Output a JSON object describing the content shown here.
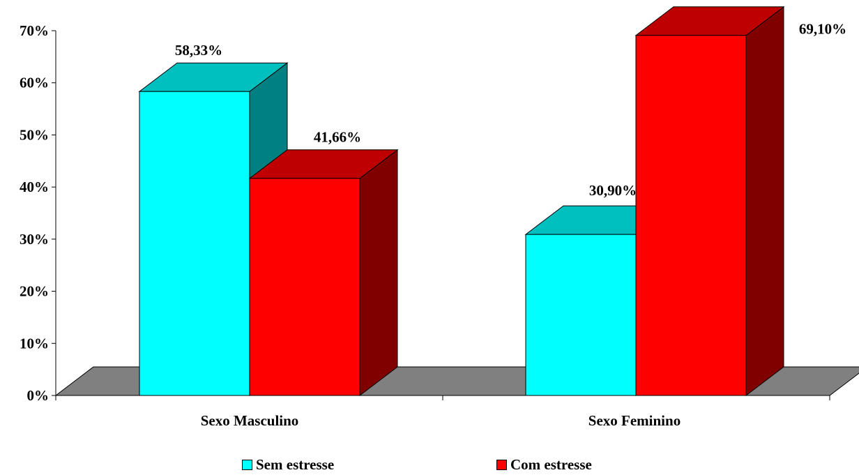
{
  "chart_data": {
    "type": "bar",
    "style": "3d-clustered-column",
    "categories": [
      "Sexo Masculino",
      "Sexo Feminino"
    ],
    "series": [
      {
        "name": "Sem estresse",
        "values": [
          58.33,
          30.9
        ],
        "labels": [
          "58,33%",
          "30,90%"
        ],
        "color": "#00FFFF"
      },
      {
        "name": "Com estresse",
        "values": [
          41.66,
          69.1
        ],
        "labels": [
          "41,66%",
          "69,10%"
        ],
        "color": "#FF0000"
      }
    ],
    "y_ticks": [
      "0%",
      "10%",
      "20%",
      "30%",
      "40%",
      "50%",
      "60%",
      "70%"
    ],
    "ylim": [
      0,
      70
    ],
    "grid": false,
    "legend_position": "bottom",
    "floor_color": "#808080"
  }
}
